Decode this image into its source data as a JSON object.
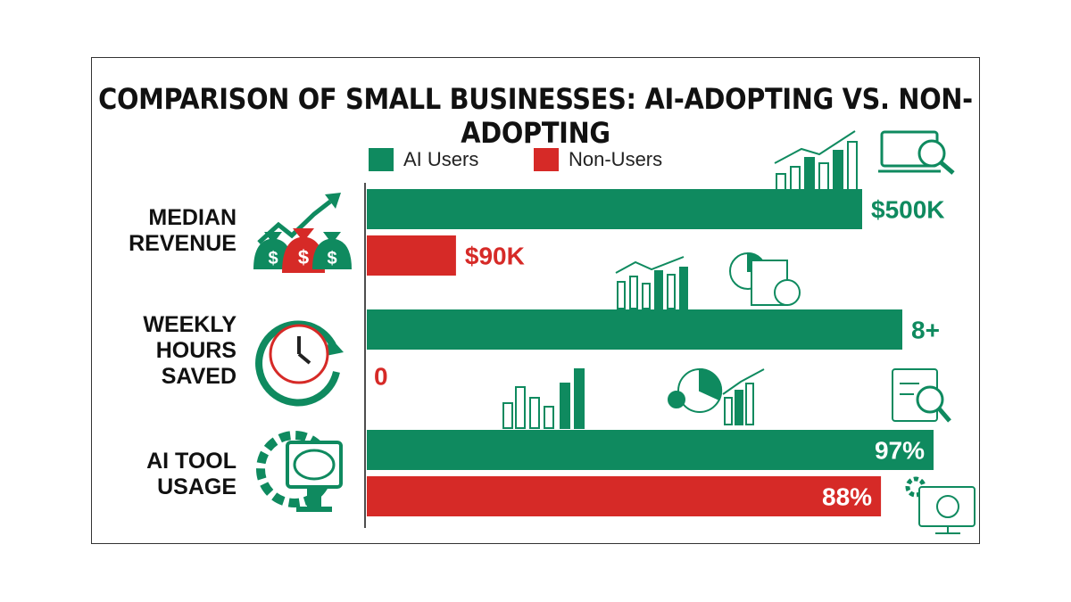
{
  "chart_data": {
    "type": "bar",
    "orientation": "horizontal",
    "title": "COMPARISON OF SMALL BUSINESSES: AI-ADOPTING VS. NON-ADOPTING",
    "categories": [
      [
        "MEDIAN",
        "REVENUE"
      ],
      [
        "WEEKLY",
        "HOURS",
        "SAVED"
      ],
      [
        "AI TOOL",
        "USAGE"
      ]
    ],
    "series": [
      {
        "name": "AI Users",
        "color": "#0f8a5f",
        "values": [
          500000,
          8,
          97
        ],
        "labels": [
          "$500K",
          "8+",
          "97%"
        ]
      },
      {
        "name": "Non-Users",
        "color": "#d62a27",
        "values": [
          90000,
          0,
          88
        ],
        "labels": [
          "$90K",
          "0",
          "88%"
        ]
      }
    ],
    "legend": "top",
    "grid": false
  }
}
